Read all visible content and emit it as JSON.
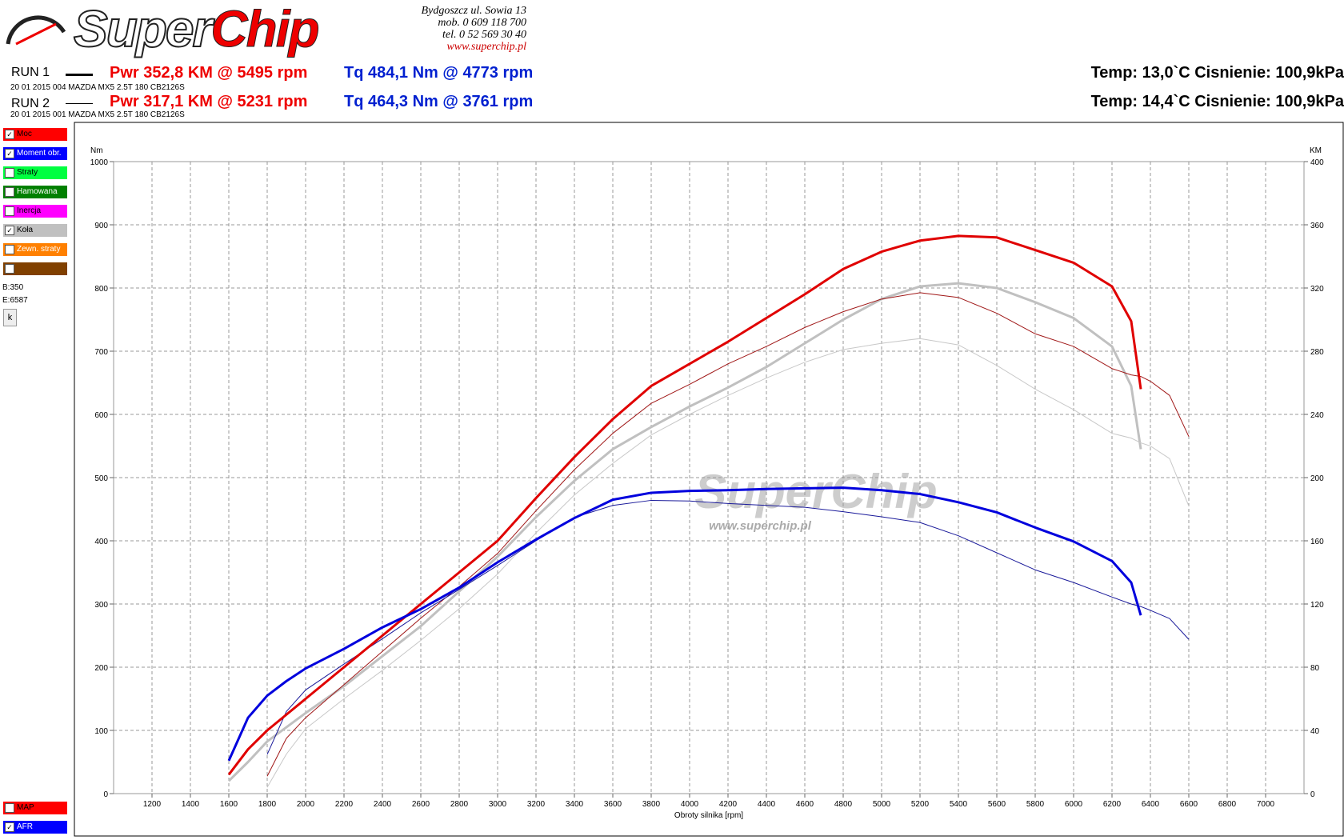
{
  "header": {
    "logo_left": "Super",
    "logo_right": "Chip",
    "address": [
      "Bydgoszcz ul. Sowia 13",
      "mob. 0 609 118 700",
      "tel. 0 52 569 30 40",
      "www.superchip.pl"
    ]
  },
  "runs": [
    {
      "label": "RUN 1",
      "power": "Pwr  352,8 KM @ 5495 rpm",
      "torque": "Tq 484,1 Nm @ 4773 rpm",
      "conditions": "Temp: 13,0`C Cisnienie: 100,9kPa",
      "info": "20 01 2015  004 MAZDA MX5 2.5T 180 CB2126S"
    },
    {
      "label": "RUN 2",
      "power": "Pwr  317,1 KM @ 5231 rpm",
      "torque": "Tq 464,3 Nm @ 3761 rpm",
      "conditions": "Temp: 14,4`C Cisnienie: 100,9kPa",
      "info": "20 01 2015  001 MAZDA MX5 2.5T 180 CB2126S"
    }
  ],
  "panel": {
    "items": [
      {
        "label": "Moc",
        "color": "#ff0000",
        "checked": true
      },
      {
        "label": "Moment obr.",
        "color": "#0000ff",
        "checked": true
      },
      {
        "label": "Straty",
        "color": "#00ff40",
        "checked": false
      },
      {
        "label": "Hamowana",
        "color": "#008000",
        "checked": false
      },
      {
        "label": "Inercja",
        "color": "#ff00ff",
        "checked": false
      },
      {
        "label": "Koła",
        "color": "#c0c0c0",
        "checked": true
      },
      {
        "label": "Zewn. straty",
        "color": "#ff8000",
        "checked": false
      },
      {
        "label": "",
        "color": "#804000",
        "checked": false
      }
    ],
    "begin": "B:350",
    "end": "E:6587",
    "button": "k",
    "bottom_items": [
      {
        "label": "MAP",
        "color": "#ff0000",
        "checked": false
      },
      {
        "label": "AFR",
        "color": "#0000ff",
        "checked": true
      }
    ]
  },
  "chart_data": {
    "type": "line",
    "y_label": "Nm",
    "y2_label": "KM",
    "x_label": "Obroty silnika [rpm]",
    "watermark": "SuperChip",
    "watermark_url": "www.superchip.pl",
    "grid": true,
    "xlim": [
      1000,
      7200
    ],
    "xticks": [
      1200,
      1400,
      1600,
      1800,
      2000,
      2200,
      2400,
      2600,
      2800,
      3000,
      3200,
      3400,
      3600,
      3800,
      4000,
      4200,
      4400,
      4600,
      4800,
      5000,
      5200,
      5400,
      5600,
      5800,
      6000,
      6200,
      6400,
      6600,
      6800,
      7000
    ],
    "ylim": [
      0,
      1000
    ],
    "yticks": [
      0,
      100,
      200,
      300,
      400,
      500,
      600,
      700,
      800,
      900,
      1000
    ],
    "y2lim": [
      0,
      400
    ],
    "y2ticks": [
      0,
      40,
      80,
      120,
      160,
      200,
      240,
      280,
      320,
      360,
      400
    ],
    "x": [
      1600,
      1700,
      1800,
      1900,
      2000,
      2200,
      2400,
      2600,
      2800,
      3000,
      3200,
      3400,
      3600,
      3800,
      4000,
      4200,
      4400,
      4600,
      4800,
      5000,
      5200,
      5400,
      5600,
      5800,
      6000,
      6200,
      6300,
      6350,
      6400,
      6500,
      6600
    ],
    "series": [
      {
        "color": "#c0c0c0",
        "width": 3,
        "axis": "y2",
        "values": [
          8,
          20,
          33,
          42,
          51,
          68,
          87,
          106,
          128,
          150,
          175,
          198,
          218,
          232,
          245,
          257,
          270,
          285,
          300,
          313,
          321,
          323,
          320,
          311,
          301,
          283,
          258,
          218,
          null,
          null,
          null
        ]
      },
      {
        "color": "#c8c8c8",
        "width": 1,
        "axis": "y2",
        "values": [
          null,
          null,
          4,
          25,
          41,
          60,
          78,
          97,
          117,
          139,
          165,
          189,
          209,
          227,
          240,
          252,
          263,
          273,
          281,
          285,
          288,
          284,
          271,
          256,
          243,
          228,
          225,
          222,
          220,
          212,
          182
        ]
      },
      {
        "color": "#a01818",
        "width": 1,
        "axis": "y2",
        "values": [
          null,
          null,
          11,
          35,
          48,
          69,
          90,
          111,
          131,
          152,
          179,
          205,
          228,
          247,
          259,
          272,
          283,
          295,
          305,
          313,
          317,
          314,
          304,
          291,
          283,
          269,
          265,
          264,
          261,
          252,
          226
        ]
      },
      {
        "color": "#1a1a9a",
        "width": 1,
        "values": [
          null,
          null,
          62,
          130,
          164,
          205,
          245,
          286,
          323,
          361,
          400,
          437,
          456,
          464,
          463,
          459,
          456,
          453,
          446,
          438,
          429,
          408,
          381,
          354,
          334,
          311,
          300,
          296,
          290,
          277,
          244
        ]
      },
      {
        "color": "#e00000",
        "width": 3,
        "axis": "y2",
        "values": [
          12,
          28,
          40,
          50,
          60,
          80,
          100,
          120,
          140,
          160,
          187,
          213,
          237,
          258,
          272,
          286,
          301,
          316,
          332,
          343,
          350,
          353,
          352,
          344,
          336,
          321,
          299,
          256,
          null,
          null,
          null
        ]
      },
      {
        "color": "#0000dd",
        "width": 3,
        "values": [
          52,
          120,
          155,
          178,
          198,
          229,
          263,
          292,
          326,
          366,
          402,
          436,
          465,
          476,
          479,
          480,
          482,
          483,
          484,
          480,
          474,
          461,
          445,
          421,
          399,
          368,
          334,
          282,
          null,
          null,
          null
        ]
      }
    ]
  }
}
